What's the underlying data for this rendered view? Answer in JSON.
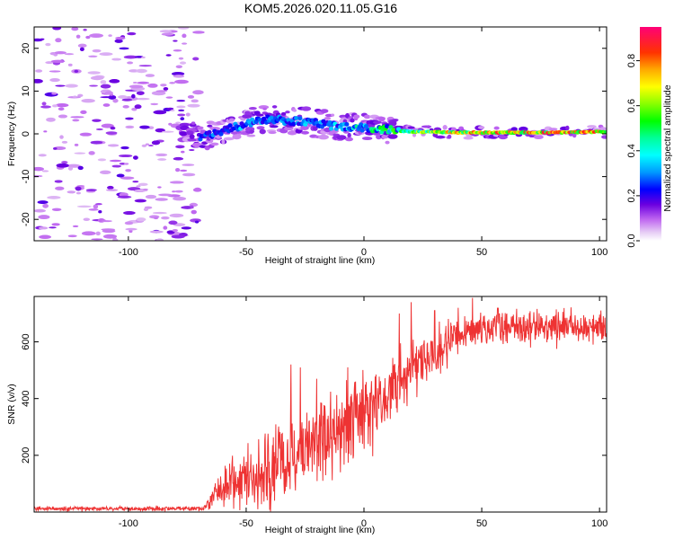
{
  "title": "KOM5.2026.020.11.05.G16",
  "colorbar": {
    "label": "Normalized spectral amplitude",
    "ticks": [
      "0.0",
      "0.2",
      "0.4",
      "0.6",
      "0.8"
    ],
    "tick_values": [
      0.0,
      0.2,
      0.4,
      0.6,
      0.8
    ],
    "range": [
      0,
      0.95
    ]
  },
  "chart_data": [
    {
      "type": "heatmap",
      "xlabel": "Height of straight line (km)",
      "ylabel": "Frequency (Hz)",
      "xlim": [
        -140,
        103
      ],
      "ylim": [
        -25,
        25
      ],
      "xticks": [
        -100,
        -50,
        0,
        50,
        100
      ],
      "xtick_labels": [
        "-100",
        "-50",
        "0",
        "50",
        "100"
      ],
      "yticks": [
        -20,
        -10,
        0,
        10,
        20
      ],
      "ytick_labels": [
        "-20",
        "-10",
        "0",
        "10",
        "20"
      ],
      "ridge": [
        {
          "x": -68,
          "y": -0.5
        },
        {
          "x": -60,
          "y": 0.5
        },
        {
          "x": -50,
          "y": 2.5
        },
        {
          "x": -40,
          "y": 3.5
        },
        {
          "x": -30,
          "y": 3
        },
        {
          "x": -20,
          "y": 2.5
        },
        {
          "x": -10,
          "y": 1.5
        },
        {
          "x": 0,
          "y": 1.5
        },
        {
          "x": 10,
          "y": 1
        },
        {
          "x": 20,
          "y": 0.5
        },
        {
          "x": 40,
          "y": 0.3
        },
        {
          "x": 60,
          "y": 0.3
        },
        {
          "x": 80,
          "y": 0.3
        },
        {
          "x": 103,
          "y": 0.5
        }
      ],
      "ridge_amplitude": [
        {
          "x": -68,
          "a": 0.3
        },
        {
          "x": -50,
          "a": 0.38
        },
        {
          "x": -30,
          "a": 0.35
        },
        {
          "x": -10,
          "a": 0.4
        },
        {
          "x": 0,
          "a": 0.5
        },
        {
          "x": 20,
          "a": 0.65
        },
        {
          "x": 40,
          "a": 0.85
        },
        {
          "x": 60,
          "a": 0.9
        },
        {
          "x": 103,
          "a": 0.92
        }
      ]
    },
    {
      "type": "line",
      "xlabel": "Height of straight line (km)",
      "ylabel": "SNR (v/v)",
      "xlim": [
        -140,
        103
      ],
      "ylim": [
        0,
        760
      ],
      "xticks": [
        -100,
        -50,
        0,
        50,
        100
      ],
      "xtick_labels": [
        "-100",
        "-50",
        "0",
        "50",
        "100"
      ],
      "yticks": [
        200,
        400,
        600
      ],
      "ytick_labels": [
        "200",
        "400",
        "600"
      ],
      "series": [
        {
          "name": "SNR",
          "color": "#ee3333",
          "mean_profile": [
            {
              "x": -140,
              "y": 12
            },
            {
              "x": -68,
              "y": 12
            },
            {
              "x": -64,
              "y": 60
            },
            {
              "x": -55,
              "y": 110
            },
            {
              "x": -40,
              "y": 150
            },
            {
              "x": -30,
              "y": 210
            },
            {
              "x": -20,
              "y": 250
            },
            {
              "x": -10,
              "y": 300
            },
            {
              "x": 0,
              "y": 350
            },
            {
              "x": 10,
              "y": 420
            },
            {
              "x": 20,
              "y": 500
            },
            {
              "x": 30,
              "y": 570
            },
            {
              "x": 40,
              "y": 620
            },
            {
              "x": 50,
              "y": 650
            },
            {
              "x": 70,
              "y": 655
            },
            {
              "x": 103,
              "y": 650
            }
          ],
          "noise_profile": [
            {
              "x": -140,
              "y": 4
            },
            {
              "x": -68,
              "y": 4
            },
            {
              "x": -60,
              "y": 35
            },
            {
              "x": -40,
              "y": 70
            },
            {
              "x": -20,
              "y": 75
            },
            {
              "x": 0,
              "y": 70
            },
            {
              "x": 20,
              "y": 55
            },
            {
              "x": 40,
              "y": 35
            },
            {
              "x": 103,
              "y": 25
            }
          ],
          "peaks": [
            {
              "x": -51,
              "y": 195
            },
            {
              "x": -45,
              "y": 300
            },
            {
              "x": -40,
              "y": 410
            },
            {
              "x": -36,
              "y": 250
            },
            {
              "x": -31,
              "y": 520
            },
            {
              "x": -27,
              "y": 510
            },
            {
              "x": -20,
              "y": 470
            },
            {
              "x": -10,
              "y": 645
            },
            {
              "x": 5,
              "y": 400
            },
            {
              "x": 13,
              "y": 520
            },
            {
              "x": 15,
              "y": 700
            },
            {
              "x": 20,
              "y": 740
            },
            {
              "x": 30,
              "y": 710
            },
            {
              "x": 40,
              "y": 720
            },
            {
              "x": 46,
              "y": 755
            },
            {
              "x": 57,
              "y": 720
            },
            {
              "x": 75,
              "y": 690
            }
          ],
          "dips": [
            {
              "x": -45,
              "y": 10
            },
            {
              "x": -40,
              "y": 8
            },
            {
              "x": -38,
              "y": 40
            },
            {
              "x": -10,
              "y": 140
            }
          ]
        }
      ]
    }
  ]
}
